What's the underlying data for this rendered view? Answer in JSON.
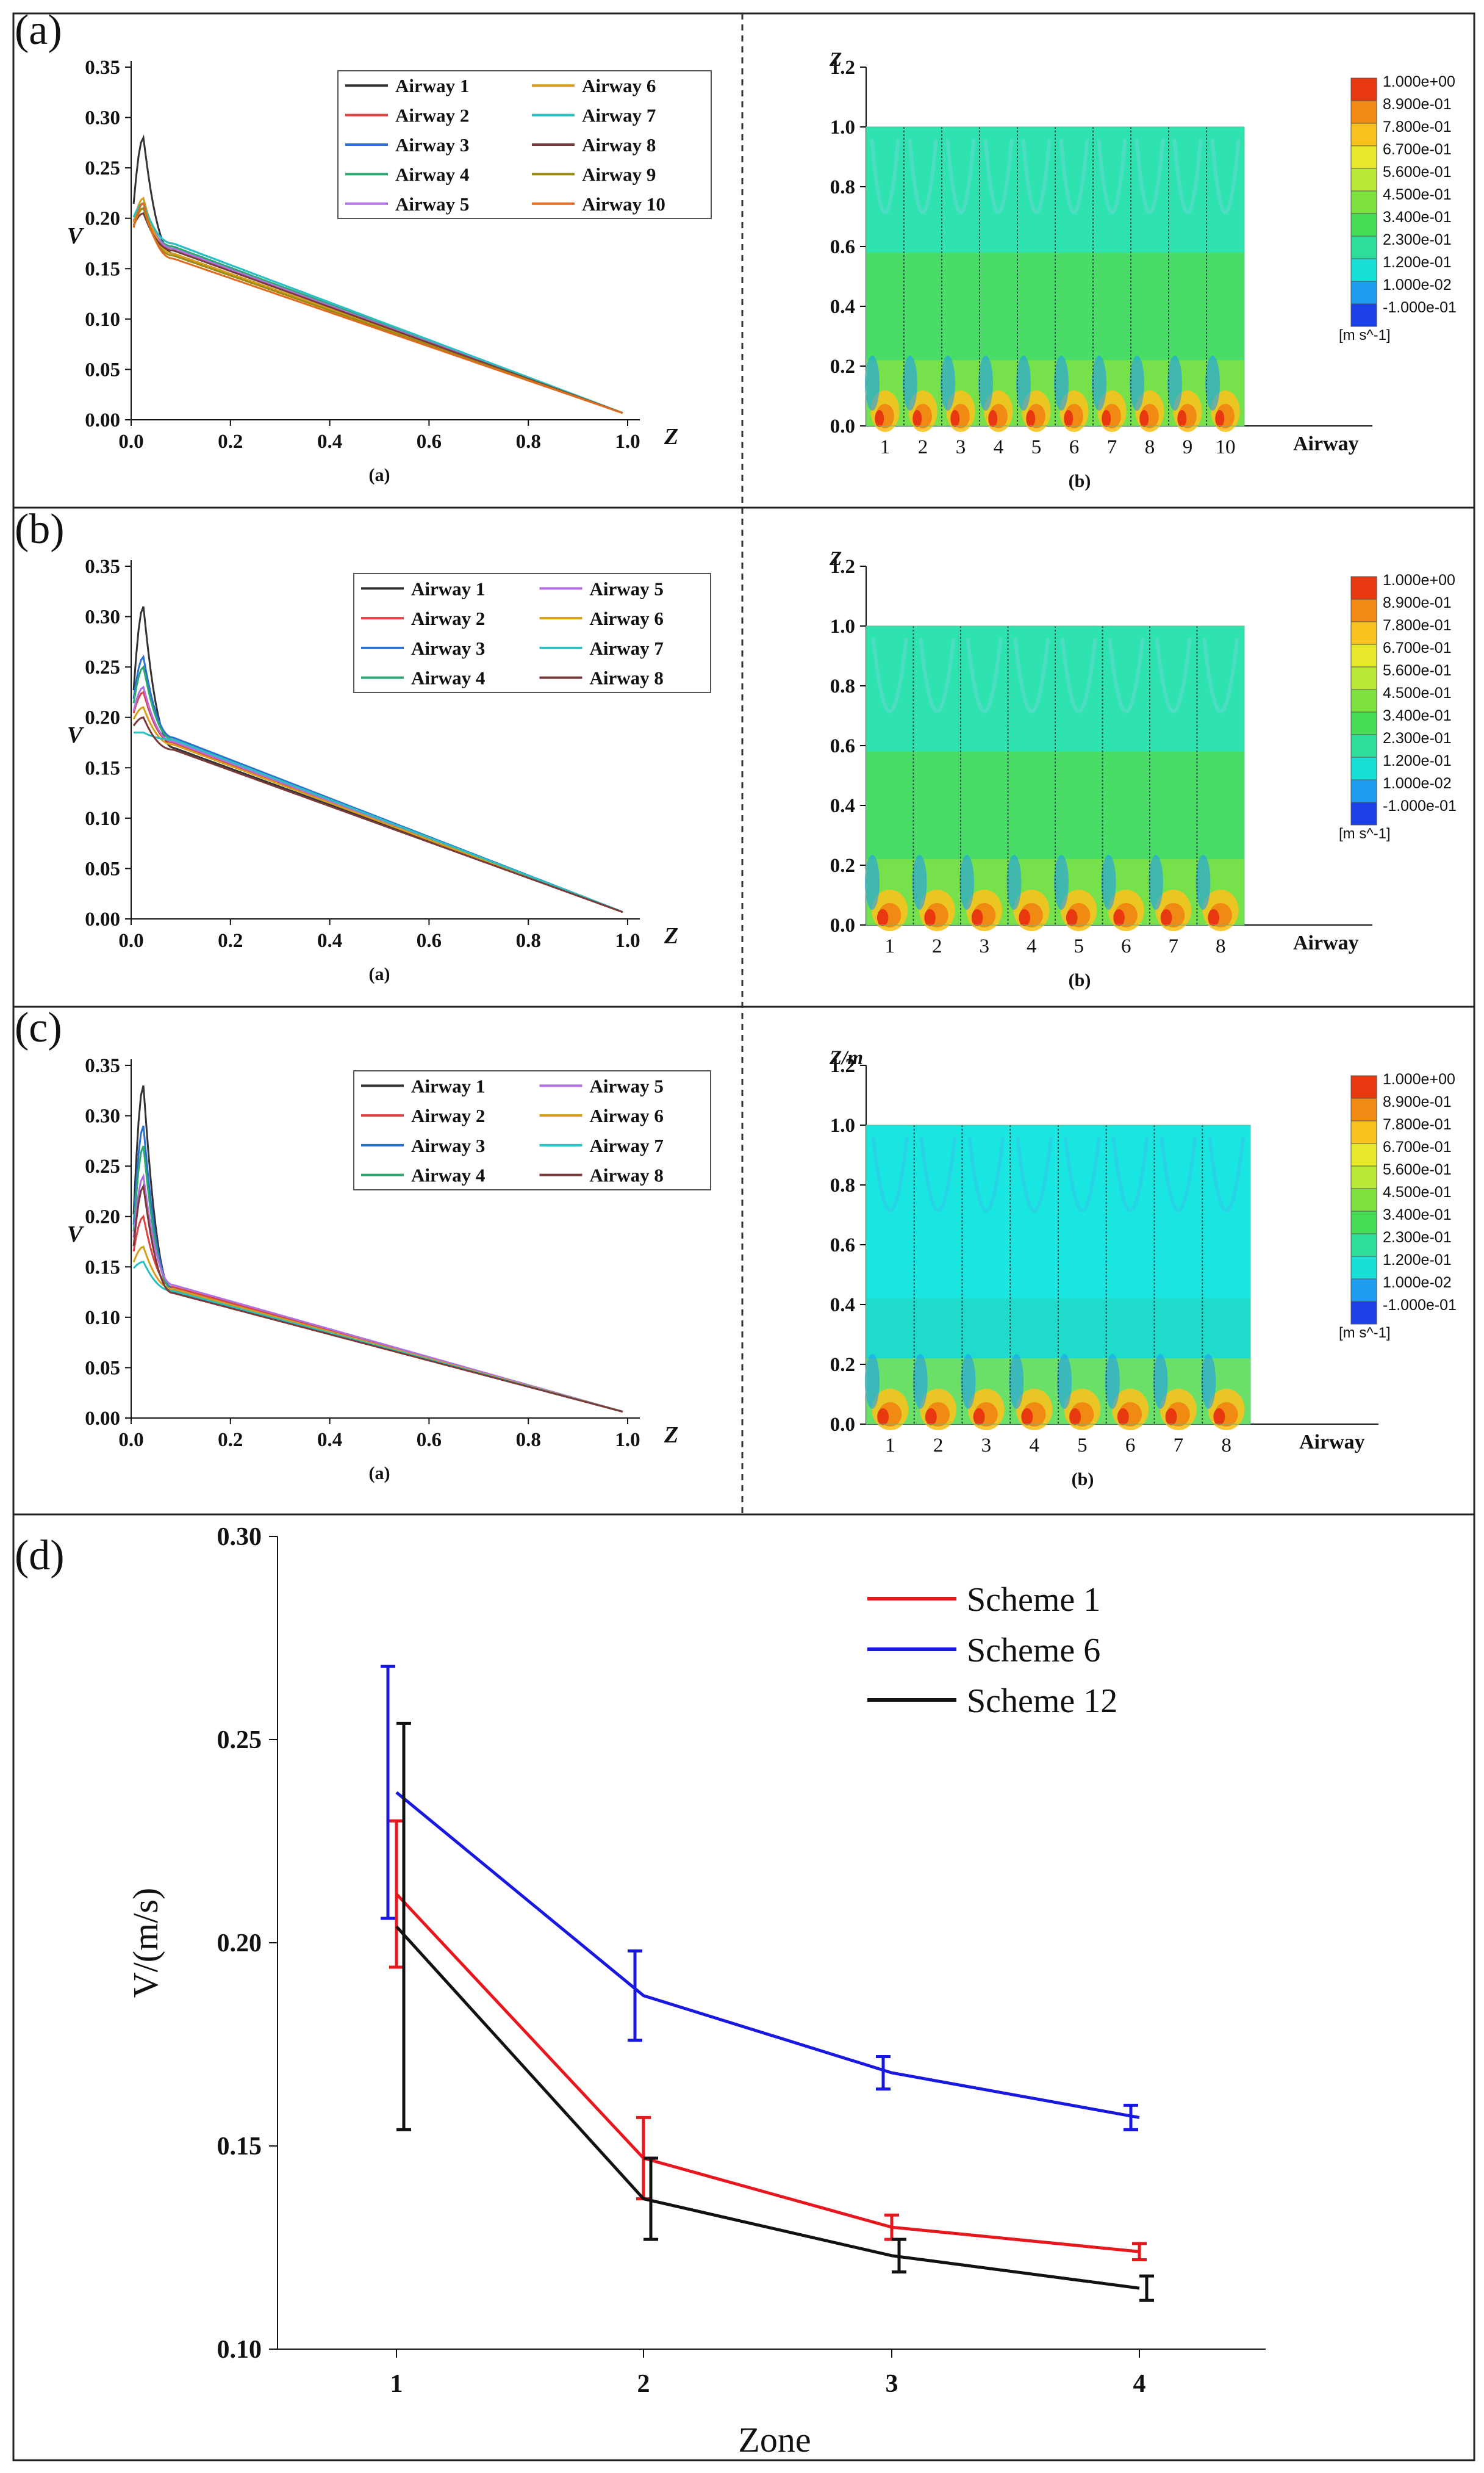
{
  "figure": {
    "row_labels": [
      "(a)",
      "(b)",
      "(c)",
      "(d)"
    ],
    "sub_caption_left": "(a)",
    "sub_caption_right": "(b)",
    "z_label": "Z",
    "z_label_m": "Z/m",
    "v_label": "V",
    "airway_axis_label": "Airway",
    "contour_unit": "[m s^-1]",
    "contour_levels": [
      "1.000e+00",
      "8.900e-01",
      "7.800e-01",
      "6.700e-01",
      "5.600e-01",
      "4.500e-01",
      "3.400e-01",
      "2.300e-01",
      "1.200e-01",
      "1.000e-02",
      "-1.000e-01"
    ],
    "colors": {
      "ramp": [
        "#e8380f",
        "#f08a12",
        "#f7c21e",
        "#e8e82a",
        "#b8e838",
        "#7ee23e",
        "#46dc56",
        "#2fdd9a",
        "#18e0d6",
        "#1e9cf0",
        "#1c40e8"
      ]
    }
  },
  "chart_data": [
    {
      "panel": "a-left",
      "type": "line",
      "xlabel": "Z",
      "ylabel": "V",
      "xlim": [
        0,
        1.0
      ],
      "ylim": [
        0,
        0.35
      ],
      "xticks": [
        "0.0",
        "0.2",
        "0.4",
        "0.6",
        "0.8",
        "1.0"
      ],
      "yticks": [
        "0.00",
        "0.05",
        "0.10",
        "0.15",
        "0.20",
        "0.25",
        "0.30",
        "0.35"
      ],
      "legend": [
        "Airway 1",
        "Airway 2",
        "Airway 3",
        "Airway 4",
        "Airway 5",
        "Airway 6",
        "Airway 7",
        "Airway 8",
        "Airway 9",
        "Airway 10"
      ],
      "legend_colors": [
        "#333333",
        "#e04040",
        "#2a6fd6",
        "#2aa870",
        "#b070e0",
        "#d89c18",
        "#28c0c0",
        "#7a3a3a",
        "#9a8a10",
        "#e06a20"
      ],
      "peaks": [
        0.28,
        0.21,
        0.215,
        0.21,
        0.215,
        0.22,
        0.215,
        0.205,
        0.21,
        0.215
      ],
      "base": [
        0.165,
        0.17,
        0.175,
        0.172,
        0.17,
        0.165,
        0.175,
        0.168,
        0.163,
        0.16
      ]
    },
    {
      "panel": "b-left",
      "type": "line",
      "xlabel": "Z",
      "ylabel": "V",
      "xlim": [
        0,
        1.0
      ],
      "ylim": [
        0,
        0.35
      ],
      "xticks": [
        "0.0",
        "0.2",
        "0.4",
        "0.6",
        "0.8",
        "1.0"
      ],
      "yticks": [
        "0.00",
        "0.05",
        "0.10",
        "0.15",
        "0.20",
        "0.25",
        "0.30",
        "0.35"
      ],
      "legend": [
        "Airway 1",
        "Airway 2",
        "Airway 3",
        "Airway 4",
        "Airway 5",
        "Airway 6",
        "Airway 7",
        "Airway 8"
      ],
      "legend_colors": [
        "#333333",
        "#e04040",
        "#2a6fd6",
        "#2aa870",
        "#b070e0",
        "#d89c18",
        "#28c0c0",
        "#7a3a3a"
      ],
      "peaks": [
        0.31,
        0.225,
        0.26,
        0.25,
        0.23,
        0.21,
        0.185,
        0.2
      ],
      "base": [
        0.17,
        0.175,
        0.18,
        0.178,
        0.176,
        0.173,
        0.178,
        0.168
      ]
    },
    {
      "panel": "c-left",
      "type": "line",
      "xlabel": "Z",
      "ylabel": "V",
      "xlim": [
        0,
        1.0
      ],
      "ylim": [
        0,
        0.35
      ],
      "xticks": [
        "0.0",
        "0.2",
        "0.4",
        "0.6",
        "0.8",
        "1.0"
      ],
      "yticks": [
        "0.00",
        "0.05",
        "0.10",
        "0.15",
        "0.20",
        "0.25",
        "0.30",
        "0.35"
      ],
      "legend": [
        "Airway 1",
        "Airway 2",
        "Airway 3",
        "Airway 4",
        "Airway 5",
        "Airway 6",
        "Airway 7",
        "Airway 8"
      ],
      "legend_colors": [
        "#333333",
        "#e04040",
        "#2a6fd6",
        "#2aa870",
        "#b070e0",
        "#d89c18",
        "#28c0c0",
        "#7a3a3a"
      ],
      "peaks": [
        0.33,
        0.2,
        0.29,
        0.27,
        0.24,
        0.17,
        0.155,
        0.23
      ],
      "base": [
        0.125,
        0.13,
        0.128,
        0.127,
        0.132,
        0.128,
        0.126,
        0.124
      ]
    },
    {
      "panel": "a-right",
      "type": "heatmap",
      "ylabel": "Z",
      "xlabel": "Airway",
      "ylim": [
        0,
        1.2
      ],
      "yticks": [
        "0.0",
        "0.2",
        "0.4",
        "0.6",
        "0.8",
        "1.0",
        "1.2"
      ],
      "categories": [
        "1",
        "2",
        "3",
        "4",
        "5",
        "6",
        "7",
        "8",
        "9",
        "10"
      ]
    },
    {
      "panel": "b-right",
      "type": "heatmap",
      "ylabel": "Z",
      "xlabel": "Airway",
      "ylim": [
        0,
        1.2
      ],
      "yticks": [
        "0.0",
        "0.2",
        "0.4",
        "0.6",
        "0.8",
        "1.0",
        "1.2"
      ],
      "categories": [
        "1",
        "2",
        "3",
        "4",
        "5",
        "6",
        "7",
        "8"
      ]
    },
    {
      "panel": "c-right",
      "type": "heatmap",
      "ylabel": "Z/m",
      "xlabel": "Airway",
      "ylim": [
        0,
        1.2
      ],
      "yticks": [
        "0.0",
        "0.2",
        "0.4",
        "0.6",
        "0.8",
        "1.0",
        "1.2"
      ],
      "categories": [
        "1",
        "2",
        "3",
        "4",
        "5",
        "6",
        "7",
        "8"
      ]
    },
    {
      "panel": "d",
      "type": "line",
      "xlabel": "Zone",
      "ylabel": "V/(m/s)",
      "ylim": [
        0.1,
        0.3
      ],
      "yticks": [
        "0.10",
        "0.15",
        "0.20",
        "0.25",
        "0.30"
      ],
      "categories": [
        "1",
        "2",
        "3",
        "4"
      ],
      "series": [
        {
          "name": "Scheme 1",
          "color": "#e8171e",
          "values": [
            0.212,
            0.147,
            0.13,
            0.124
          ],
          "errors": [
            0.018,
            0.01,
            0.003,
            0.002
          ]
        },
        {
          "name": "Scheme 6",
          "color": "#1818e0",
          "values": [
            0.237,
            0.187,
            0.168,
            0.157
          ],
          "errors": [
            0.031,
            0.011,
            0.004,
            0.003
          ]
        },
        {
          "name": "Scheme 12",
          "color": "#111111",
          "values": [
            0.204,
            0.137,
            0.123,
            0.115
          ],
          "errors": [
            0.05,
            0.01,
            0.004,
            0.003
          ]
        }
      ]
    }
  ]
}
